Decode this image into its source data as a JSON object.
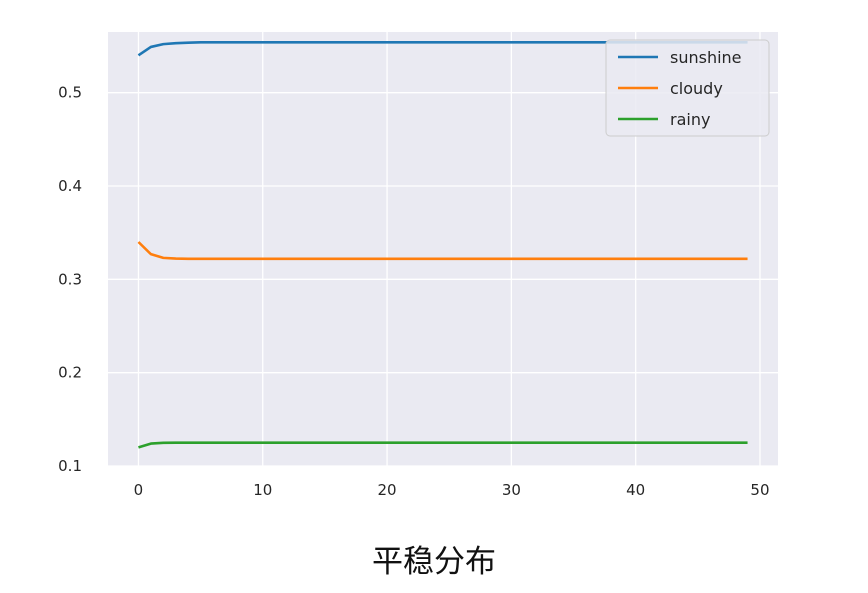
{
  "caption": "平稳分布",
  "chart_data": {
    "type": "line",
    "title": "",
    "xlabel": "",
    "ylabel": "",
    "xlim": [
      -2.45,
      51.45
    ],
    "ylim": [
      0.1,
      0.565
    ],
    "xticks": [
      0,
      10,
      20,
      30,
      40,
      50
    ],
    "yticks": [
      0.1,
      0.2,
      0.3,
      0.4,
      0.5
    ],
    "ytick_labels": [
      "0.1",
      "0.2",
      "0.3",
      "0.4",
      "0.5"
    ],
    "grid": true,
    "legend_position": "top-right",
    "x": [
      0,
      1,
      2,
      3,
      4,
      5,
      6,
      7,
      8,
      9,
      10,
      11,
      12,
      13,
      14,
      15,
      16,
      17,
      18,
      19,
      20,
      21,
      22,
      23,
      24,
      25,
      26,
      27,
      28,
      29,
      30,
      31,
      32,
      33,
      34,
      35,
      36,
      37,
      38,
      39,
      40,
      41,
      42,
      43,
      44,
      45,
      46,
      47,
      48,
      49
    ],
    "series": [
      {
        "name": "sunshine",
        "color": "#1f77b4",
        "values": [
          0.54,
          0.549,
          0.552,
          0.553,
          0.5535,
          0.554,
          0.554,
          0.554,
          0.554,
          0.554,
          0.554,
          0.554,
          0.554,
          0.554,
          0.554,
          0.554,
          0.554,
          0.554,
          0.554,
          0.554,
          0.554,
          0.554,
          0.554,
          0.554,
          0.554,
          0.554,
          0.554,
          0.554,
          0.554,
          0.554,
          0.554,
          0.554,
          0.554,
          0.554,
          0.554,
          0.554,
          0.554,
          0.554,
          0.554,
          0.554,
          0.554,
          0.554,
          0.554,
          0.554,
          0.554,
          0.554,
          0.554,
          0.554,
          0.554,
          0.554
        ]
      },
      {
        "name": "cloudy",
        "color": "#ff7f0e",
        "values": [
          0.34,
          0.327,
          0.323,
          0.3222,
          0.322,
          0.322,
          0.322,
          0.322,
          0.322,
          0.322,
          0.322,
          0.322,
          0.322,
          0.322,
          0.322,
          0.322,
          0.322,
          0.322,
          0.322,
          0.322,
          0.322,
          0.322,
          0.322,
          0.322,
          0.322,
          0.322,
          0.322,
          0.322,
          0.322,
          0.322,
          0.322,
          0.322,
          0.322,
          0.322,
          0.322,
          0.322,
          0.322,
          0.322,
          0.322,
          0.322,
          0.322,
          0.322,
          0.322,
          0.322,
          0.322,
          0.322,
          0.322,
          0.322,
          0.322,
          0.322
        ]
      },
      {
        "name": "rainy",
        "color": "#2ca02c",
        "values": [
          0.12,
          0.124,
          0.1248,
          0.125,
          0.125,
          0.125,
          0.125,
          0.125,
          0.125,
          0.125,
          0.125,
          0.125,
          0.125,
          0.125,
          0.125,
          0.125,
          0.125,
          0.125,
          0.125,
          0.125,
          0.125,
          0.125,
          0.125,
          0.125,
          0.125,
          0.125,
          0.125,
          0.125,
          0.125,
          0.125,
          0.125,
          0.125,
          0.125,
          0.125,
          0.125,
          0.125,
          0.125,
          0.125,
          0.125,
          0.125,
          0.125,
          0.125,
          0.125,
          0.125,
          0.125,
          0.125,
          0.125,
          0.125,
          0.125,
          0.125
        ]
      }
    ]
  },
  "colors": {
    "plot_background": "#eaeaf2",
    "grid": "#ffffff",
    "legend_background": "#eaeaf2"
  }
}
